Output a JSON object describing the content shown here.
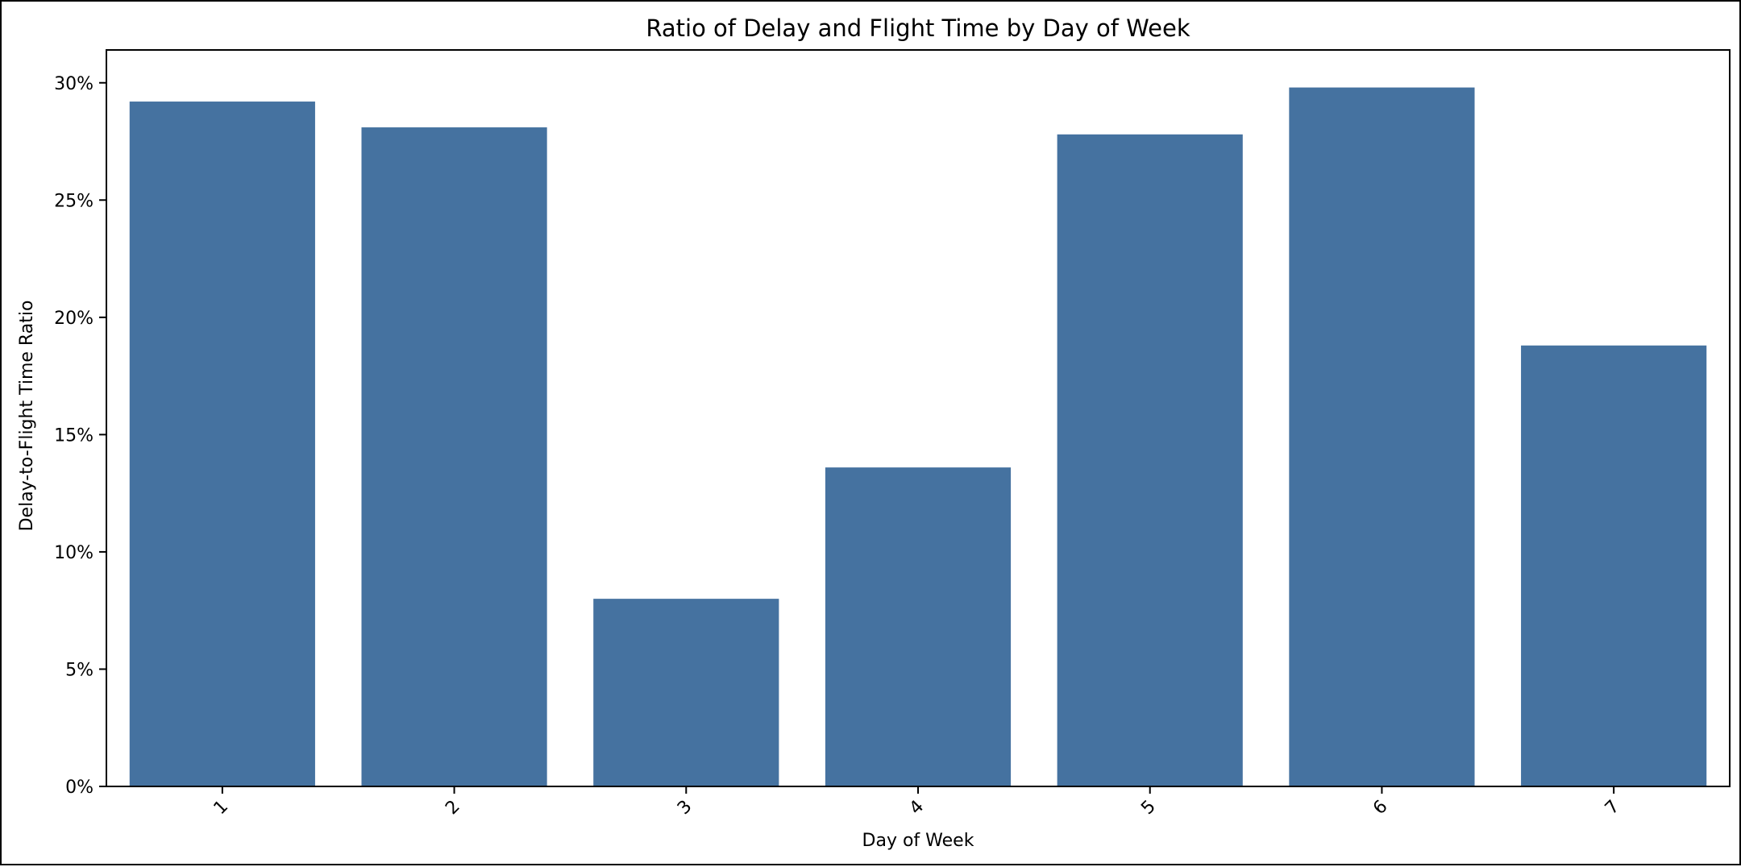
{
  "chart_data": {
    "type": "bar",
    "title": "Ratio of Delay and Flight Time by Day of Week",
    "xlabel": "Day of Week",
    "ylabel": "Delay-to-Flight Time Ratio",
    "categories": [
      "1",
      "2",
      "3",
      "4",
      "5",
      "6",
      "7"
    ],
    "values": [
      29.2,
      28.1,
      8.0,
      13.6,
      27.8,
      29.8,
      18.8
    ],
    "value_unit": "%",
    "ylim": [
      0,
      31.4
    ],
    "yticks": [
      0,
      5,
      10,
      15,
      20,
      25,
      30
    ],
    "ytick_labels": [
      "0%",
      "5%",
      "10%",
      "15%",
      "20%",
      "25%",
      "30%"
    ],
    "xtick_rotation": "45 degrees",
    "bar_color": "#4572a0",
    "grid": false,
    "legend": "none"
  }
}
